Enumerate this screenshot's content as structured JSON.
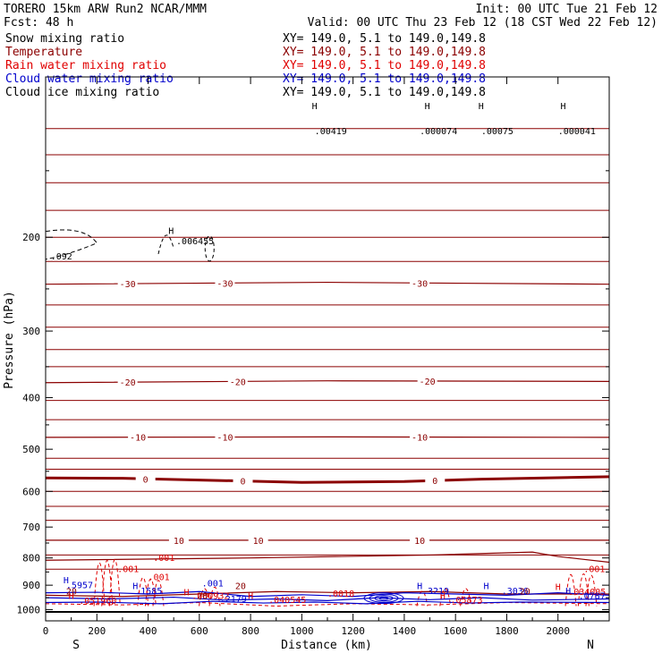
{
  "header": {
    "model": "TORERO  15km ARW   Run2    NCAR/MMM",
    "init": "Init: 00 UTC Tue 21 Feb 12",
    "fcst": "Fcst:   48 h",
    "valid": "Valid: 00 UTC Thu 23 Feb 12 (18 CST Wed 22 Feb 12)"
  },
  "legend": [
    {
      "name": "Snow mixing ratio",
      "color": "#000000",
      "xy": "XY= 149.0,  5.1 to 149.0,149.8"
    },
    {
      "name": "Temperature",
      "color": "#8b0000",
      "xy": "XY= 149.0,  5.1 to 149.0,149.8"
    },
    {
      "name": "Rain water mixing ratio",
      "color": "#e00000",
      "xy": "XY= 149.0,  5.1 to 149.0,149.8"
    },
    {
      "name": "Cloud water mixing ratio",
      "color": "#0000cc",
      "xy": "XY= 149.0,  5.1 to 149.0,149.8"
    },
    {
      "name": "Cloud ice mixing ratio",
      "color": "#000000",
      "xy": "XY= 149.0,  5.1 to 149.0,149.8"
    }
  ],
  "chart_data": {
    "type": "line",
    "xlabel": "Distance (km)",
    "ylabel": "Pressure (hPa)",
    "xlim": [
      0,
      2200
    ],
    "ylim": [
      1050,
      100
    ],
    "xticks": [
      0,
      200,
      400,
      600,
      800,
      1000,
      1200,
      1400,
      1600,
      1800,
      2000
    ],
    "yticks": [
      200,
      300,
      400,
      500,
      600,
      700,
      800,
      900,
      1000
    ],
    "yscale": "log",
    "start_label": "S",
    "end_label": "N",
    "temperature_contours": [
      {
        "label": "-30",
        "x": [
          0,
          1100,
          2200
        ],
        "y": [
          245,
          243,
          245
        ],
        "label_x": [
          320,
          700,
          1460
        ]
      },
      {
        "label": "-20",
        "x": [
          0,
          1100,
          2200
        ],
        "y": [
          375,
          372,
          373
        ],
        "label_x": [
          320,
          750,
          1490
        ]
      },
      {
        "label": "-10",
        "x": [
          0,
          1100,
          2200
        ],
        "y": [
          475,
          474,
          475
        ],
        "label_x": [
          360,
          700,
          1460
        ]
      },
      {
        "label": "0",
        "x": [
          0,
          300,
          1000,
          1400,
          1700,
          2200
        ],
        "y": [
          566,
          567,
          577,
          575,
          569,
          563
        ],
        "label_x": [
          390,
          770,
          1520
        ]
      },
      {
        "label": "10",
        "x": [
          0,
          1100,
          2200
        ],
        "y": [
          741,
          741,
          741
        ],
        "label_x": [
          520,
          830,
          1460
        ]
      }
    ],
    "annotations": [
      {
        "text": ".006455",
        "x": 510,
        "y": 206,
        "series": "Cloud ice mixing ratio"
      },
      {
        "text": ".092",
        "x": 20,
        "y": 220,
        "series": "Cloud ice mixing ratio"
      },
      {
        "text": ".00419",
        "x": 1050,
        "y": 128,
        "series": "Snow mixing ratio"
      },
      {
        "text": ".000074",
        "x": 1460,
        "y": 128,
        "series": "Snow mixing ratio"
      },
      {
        "text": ".00075",
        "x": 1700,
        "y": 128,
        "series": "Snow mixing ratio"
      },
      {
        "text": ".000041",
        "x": 2000,
        "y": 128,
        "series": "Snow mixing ratio"
      },
      {
        "text": ".001",
        "x": 420,
        "y": 810,
        "series": "Rain water mixing ratio"
      },
      {
        "text": ".001",
        "x": 280,
        "y": 850,
        "series": "Rain water mixing ratio"
      },
      {
        "text": ".001",
        "x": 400,
        "y": 880,
        "series": "Rain water mixing ratio"
      },
      {
        "text": ".001",
        "x": 2100,
        "y": 850,
        "series": "Rain water mixing ratio"
      },
      {
        "text": ".051960",
        "x": 130,
        "y": 975,
        "series": "Rain water mixing ratio"
      },
      {
        "text": ".060932",
        "x": 570,
        "y": 955,
        "series": "Rain water mixing ratio"
      },
      {
        "text": ".040545",
        "x": 870,
        "y": 972,
        "series": "Rain water mixing ratio"
      },
      {
        "text": ".05873",
        "x": 1580,
        "y": 972,
        "series": "Rain water mixing ratio"
      },
      {
        "text": ".034005",
        "x": 2040,
        "y": 938,
        "series": "Rain water mixing ratio"
      },
      {
        "text": ".5957",
        "x": 80,
        "y": 912,
        "series": "Cloud water mixing ratio"
      },
      {
        "text": ".1585",
        "x": 350,
        "y": 935,
        "series": "Cloud water mixing ratio"
      },
      {
        "text": ".2179",
        "x": 680,
        "y": 968,
        "series": "Cloud water mixing ratio"
      },
      {
        "text": ".3219",
        "x": 1470,
        "y": 935,
        "series": "Cloud water mixing ratio"
      },
      {
        "text": ".3036",
        "x": 1780,
        "y": 935,
        "series": "Cloud water mixing ratio"
      },
      {
        "text": ".0787",
        "x": 2080,
        "y": 955,
        "series": "Cloud water mixing ratio"
      },
      {
        "text": ".001",
        "x": 610,
        "y": 905,
        "series": "Cloud water mixing ratio"
      },
      {
        "text": ".0018",
        "x": 1100,
        "y": 945,
        "series": "Rain water mixing ratio"
      },
      {
        "text": "20",
        "x": 80,
        "y": 937,
        "series": "Temperature"
      },
      {
        "text": "20",
        "x": 590,
        "y": 955,
        "series": "Temperature"
      },
      {
        "text": "20",
        "x": 740,
        "y": 915,
        "series": "Temperature"
      },
      {
        "text": "20",
        "x": 1850,
        "y": 937,
        "series": "Temperature"
      }
    ],
    "highs": [
      {
        "x": 80,
        "y": 892,
        "color": "#0000cc"
      },
      {
        "x": 350,
        "y": 915,
        "color": "#0000cc"
      },
      {
        "x": 1460,
        "y": 915,
        "color": "#0000cc"
      },
      {
        "x": 1720,
        "y": 915,
        "color": "#0000cc"
      },
      {
        "x": 2040,
        "y": 935,
        "color": "#0000cc"
      },
      {
        "x": 100,
        "y": 955,
        "color": "#e00000"
      },
      {
        "x": 550,
        "y": 940,
        "color": "#e00000"
      },
      {
        "x": 800,
        "y": 955,
        "color": "#e00000"
      },
      {
        "x": 1550,
        "y": 955,
        "color": "#e00000"
      },
      {
        "x": 2000,
        "y": 918,
        "color": "#e00000"
      },
      {
        "x": 490,
        "y": 197,
        "color": "#000000"
      },
      {
        "x": 1050,
        "y": 115,
        "color": "#000000"
      },
      {
        "x": 1490,
        "y": 115,
        "color": "#000000"
      },
      {
        "x": 1700,
        "y": 115,
        "color": "#000000"
      },
      {
        "x": 2020,
        "y": 115,
        "color": "#000000"
      }
    ]
  }
}
